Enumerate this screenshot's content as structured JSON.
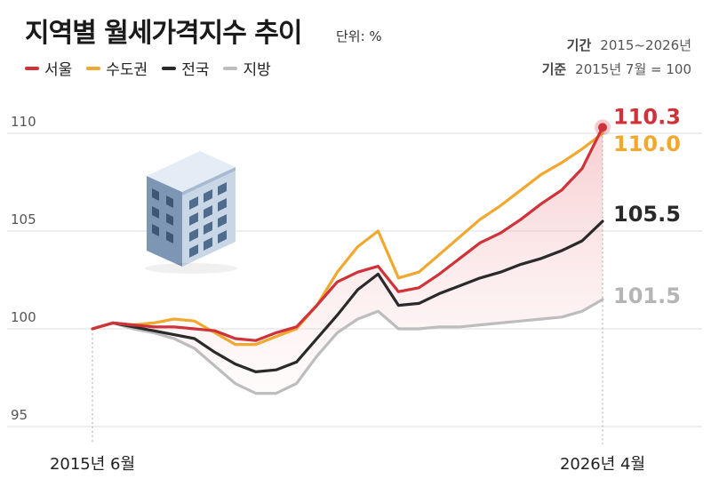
{
  "header": {
    "title": "지역별 월세가격지수 추이",
    "unit": "단위: %",
    "period_key": "기간",
    "period_value": "2015~2026년",
    "base_key": "기준",
    "base_value": "2015년 7월 = 100"
  },
  "chart_data": {
    "type": "line",
    "title": "지역별 월세가격지수 추이",
    "ylabel": "",
    "xlabel": "",
    "ylim": [
      95,
      110
    ],
    "yticks": [
      "95",
      "100",
      "105",
      "110"
    ],
    "grid": true,
    "legend_position": "top-left",
    "x_start_label": "2015년 6월",
    "x_end_label": "2026년 4월",
    "x": [
      0,
      0.04,
      0.08,
      0.12,
      0.16,
      0.2,
      0.24,
      0.28,
      0.32,
      0.36,
      0.4,
      0.44,
      0.48,
      0.52,
      0.56,
      0.6,
      0.64,
      0.68,
      0.72,
      0.76,
      0.8,
      0.84,
      0.88,
      0.92,
      0.96,
      1
    ],
    "series": [
      {
        "name": "서울",
        "color": "#d0323a",
        "end_label": "110.3",
        "values": [
          100,
          100.3,
          100.2,
          100.1,
          100.1,
          100.0,
          99.9,
          99.5,
          99.4,
          99.8,
          100.1,
          101.2,
          102.4,
          102.9,
          103.2,
          101.9,
          102.1,
          102.8,
          103.6,
          104.4,
          104.9,
          105.6,
          106.4,
          107.1,
          108.2,
          110.3
        ]
      },
      {
        "name": "수도권",
        "color": "#f0a830",
        "end_label": "110.0",
        "values": [
          100,
          100.3,
          100.2,
          100.3,
          100.5,
          100.4,
          99.8,
          99.2,
          99.2,
          99.6,
          100.0,
          101.2,
          102.9,
          104.2,
          105.0,
          102.6,
          102.9,
          103.8,
          104.7,
          105.6,
          106.3,
          107.1,
          107.9,
          108.5,
          109.2,
          110.0
        ]
      },
      {
        "name": "전국",
        "color": "#2a2a2a",
        "end_label": "105.5",
        "values": [
          100,
          100.3,
          100.1,
          99.9,
          99.7,
          99.5,
          98.8,
          98.2,
          97.8,
          97.9,
          98.3,
          99.5,
          100.7,
          102.0,
          102.8,
          101.2,
          101.3,
          101.8,
          102.2,
          102.6,
          102.9,
          103.3,
          103.6,
          104.0,
          104.5,
          105.5
        ]
      },
      {
        "name": "지방",
        "color": "#bdbdbd",
        "end_label": "101.5",
        "values": [
          100,
          100.3,
          100.0,
          99.8,
          99.5,
          99.0,
          98.1,
          97.2,
          96.7,
          96.7,
          97.2,
          98.6,
          99.8,
          100.5,
          100.9,
          100.0,
          100.0,
          100.1,
          100.1,
          100.2,
          100.3,
          100.4,
          100.5,
          100.6,
          100.9,
          101.5
        ]
      }
    ]
  }
}
